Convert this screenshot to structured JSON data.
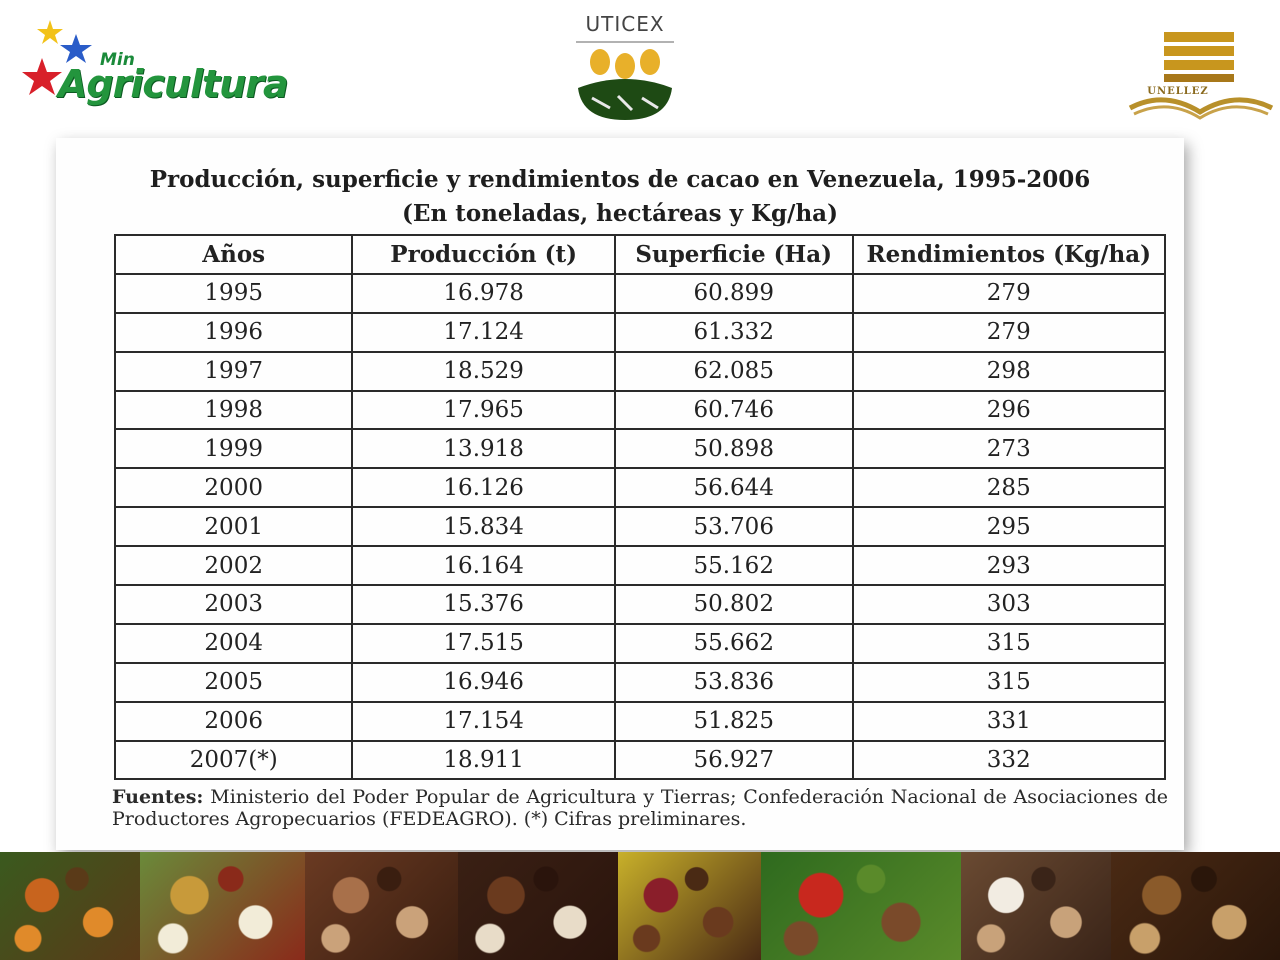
{
  "logos": {
    "min_agricultura": {
      "line1": "Min",
      "line2": "Agricultura"
    },
    "uticex": {
      "name": "UTICEX"
    },
    "unellez": {
      "name": "UNELLEZ"
    }
  },
  "document": {
    "title": "Producción, superficie y rendimientos  de cacao en Venezuela, 1995-2006",
    "subtitle": "(En toneladas, hectáreas y Kg/ha)",
    "table": {
      "headers": [
        "Años",
        "Producción (t)",
        "Superficie (Ha)",
        "Rendimientos (Kg/ha)"
      ],
      "rows": [
        [
          "1995",
          "16.978",
          "60.899",
          "279"
        ],
        [
          "1996",
          "17.124",
          "61.332",
          "279"
        ],
        [
          "1997",
          "18.529",
          "62.085",
          "298"
        ],
        [
          "1998",
          "17.965",
          "60.746",
          "296"
        ],
        [
          "1999",
          "13.918",
          "50.898",
          "273"
        ],
        [
          "2000",
          "16.126",
          "56.644",
          "285"
        ],
        [
          "2001",
          "15.834",
          "53.706",
          "295"
        ],
        [
          "2002",
          "16.164",
          "55.162",
          "293"
        ],
        [
          "2003",
          "15.376",
          "50.802",
          "303"
        ],
        [
          "2004",
          "17.515",
          "55.662",
          "315"
        ],
        [
          "2005",
          "16.946",
          "53.836",
          "315"
        ],
        [
          "2006",
          "17.154",
          "51.825",
          "331"
        ],
        [
          "2007(*)",
          "18.911",
          "56.927",
          "332"
        ]
      ]
    },
    "source_label": "Fuentes:",
    "source_text": "Ministerio del Poder Popular de Agricultura y Tierras; Confederación Nacional de Asociaciones de Productores Agropecuarios (FEDEAGRO). (*) Cifras preliminares."
  },
  "photo_strip": [
    {
      "name": "cacao-pods-on-tree-photo",
      "colors": [
        "#3a5a1e",
        "#c8641e",
        "#e08a2a",
        "#5a3a18"
      ]
    },
    {
      "name": "open-cacao-pod-photo",
      "colors": [
        "#6a8a3a",
        "#c89a3a",
        "#f2ecd8",
        "#8a2a1a"
      ]
    },
    {
      "name": "cacao-beans-photo",
      "colors": [
        "#6a3a22",
        "#a8704a",
        "#caa27a",
        "#3a1e10"
      ]
    },
    {
      "name": "chocolates-photo",
      "colors": [
        "#3a2014",
        "#6a3a1e",
        "#e8dcc8",
        "#2a140c"
      ]
    },
    {
      "name": "cacao-pods-and-beans-photo",
      "colors": [
        "#c8b02a",
        "#8a1e2a",
        "#6a3a1e",
        "#4a2a14"
      ]
    },
    {
      "name": "coffee-cherries-harvest-photo",
      "colors": [
        "#2e6a1e",
        "#c8281e",
        "#7a4a2a",
        "#5a8a2a"
      ]
    },
    {
      "name": "cappuccino-cup-photo",
      "colors": [
        "#6a4a32",
        "#f2ece2",
        "#c8a27a",
        "#3a2418"
      ]
    },
    {
      "name": "coffee-beans-sack-photo",
      "colors": [
        "#4a2a14",
        "#8a5a2a",
        "#c8a06a",
        "#2a160a"
      ]
    }
  ]
}
